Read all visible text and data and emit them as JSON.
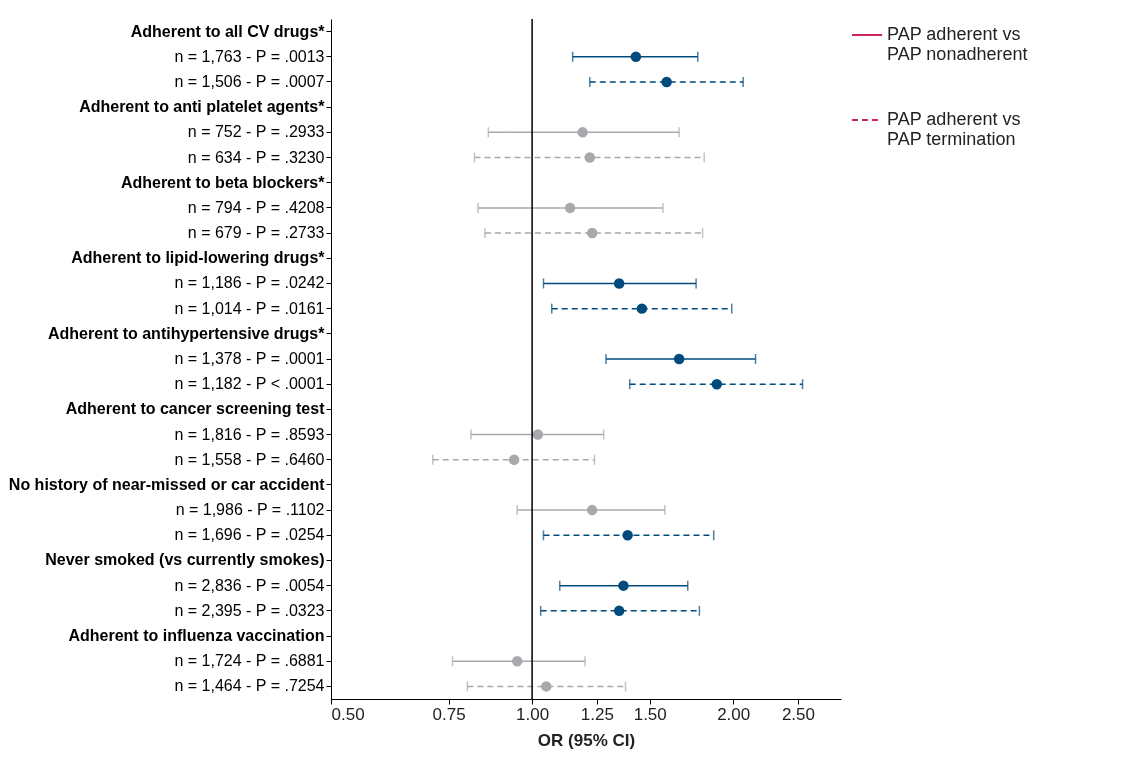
{
  "chart_data": {
    "type": "scatter",
    "orientation": "horizontal",
    "xlabel": "OR (95% CI)",
    "categories": [
      "Adherent to all CV drugs*",
      "n = 1,763 - P = .0013",
      "n = 1,506 - P = .0007",
      "Adherent to anti platelet agents*",
      "n = 752 - P = .2933",
      "n = 634 - P = .3230",
      "Adherent to beta blockers*",
      "n = 794 - P = .4208",
      "n = 679 - P = .2733",
      "Adherent to lipid-lowering drugs*",
      "n = 1,186 - P = .0242",
      "n = 1,014 - P = .0161",
      "Adherent to antihypertensive drugs*",
      "n = 1,378 - P = .0001",
      "n = 1,182 - P < .0001",
      "Adherent to cancer screening test",
      "n = 1,816 - P = .8593",
      "n = 1,558 - P = .6460",
      "No history of near-missed or car accident",
      "n = 1,986 - P = .1102",
      "n = 1,696 - P = .0254",
      "Never smoked (vs currently smokes)",
      "n = 2,836 - P = .0054",
      "n = 2,395 - P = .0323",
      "Adherent to influenza vaccination",
      "n = 1,724 - P = .6881",
      "n = 1,464 - P = .7254"
    ],
    "series": [
      {
        "name": "PAP adherent vs PAP nonadherent",
        "color": "#c8265a",
        "line_style": "solid",
        "values": [
          null,
          1.43,
          null,
          null,
          1.19,
          null,
          null,
          1.14,
          null,
          null,
          1.35,
          null,
          null,
          1.66,
          null,
          null,
          1.02,
          null,
          null,
          1.23,
          null,
          null,
          1.37,
          null,
          null,
          0.95,
          null
        ],
        "errors": [
          null,
          [
            1.15,
            1.77
          ],
          null,
          null,
          [
            0.86,
            1.66
          ],
          null,
          null,
          [
            0.83,
            1.57
          ],
          null,
          null,
          [
            1.04,
            1.76
          ],
          null,
          null,
          [
            1.29,
            2.16
          ],
          null,
          null,
          [
            0.81,
            1.28
          ],
          null,
          null,
          [
            0.95,
            1.58
          ],
          null,
          null,
          [
            1.1,
            1.71
          ],
          null,
          null,
          [
            0.76,
            1.2
          ],
          null
        ],
        "colors": [
          null,
          "#004b7c",
          null,
          null,
          "#a7a9ac",
          null,
          null,
          "#a7a9ac",
          null,
          null,
          "#004b7c",
          null,
          null,
          "#004b7c",
          null,
          null,
          "#a7a9ac",
          null,
          null,
          "#a7a9ac",
          null,
          null,
          "#004b7c",
          null,
          null,
          "#a7a9ac",
          null
        ]
      },
      {
        "name": "PAP adherent vs PAP termination",
        "color": "#c8265a",
        "line_style": "dashed",
        "values": [
          null,
          null,
          1.59,
          null,
          null,
          1.22,
          null,
          null,
          1.23,
          null,
          null,
          1.46,
          null,
          null,
          1.89,
          null,
          null,
          0.94,
          null,
          null,
          1.39,
          null,
          null,
          1.35,
          null,
          null,
          1.05
        ],
        "errors": [
          null,
          null,
          [
            1.22,
            2.07
          ],
          null,
          null,
          [
            0.82,
            1.81
          ],
          null,
          null,
          [
            0.85,
            1.8
          ],
          null,
          null,
          [
            1.07,
            1.99
          ],
          null,
          null,
          [
            1.4,
            2.54
          ],
          null,
          null,
          [
            0.71,
            1.24
          ],
          null,
          null,
          [
            1.04,
            1.87
          ],
          null,
          null,
          [
            1.03,
            1.78
          ],
          null,
          null,
          [
            0.8,
            1.38
          ]
        ],
        "colors": [
          null,
          null,
          "#004b7c",
          null,
          null,
          "#a7a9ac",
          null,
          null,
          "#a7a9ac",
          null,
          null,
          "#004b7c",
          null,
          null,
          "#004b7c",
          null,
          null,
          "#a7a9ac",
          null,
          null,
          "#004b7c",
          null,
          null,
          "#004b7c",
          null,
          null,
          "#a7a9ac"
        ]
      }
    ],
    "log": "x",
    "xlim": [
      0.5,
      2.9
    ],
    "xticks": [
      {
        "value": 0.5,
        "label": "0.50"
      },
      {
        "value": 0.75,
        "label": "0.75"
      },
      {
        "value": 1,
        "label": "1.00"
      },
      {
        "value": 1.25,
        "label": "1.25"
      },
      {
        "value": 1.5,
        "label": "1.50"
      },
      {
        "value": 2,
        "label": "2.00"
      },
      {
        "value": 2.5,
        "label": "2.50"
      }
    ],
    "ref_lines": [
      {
        "axis": "x",
        "value": 1,
        "color": "#000000"
      }
    ],
    "grid": false,
    "legend": "right",
    "marker": "circle"
  }
}
